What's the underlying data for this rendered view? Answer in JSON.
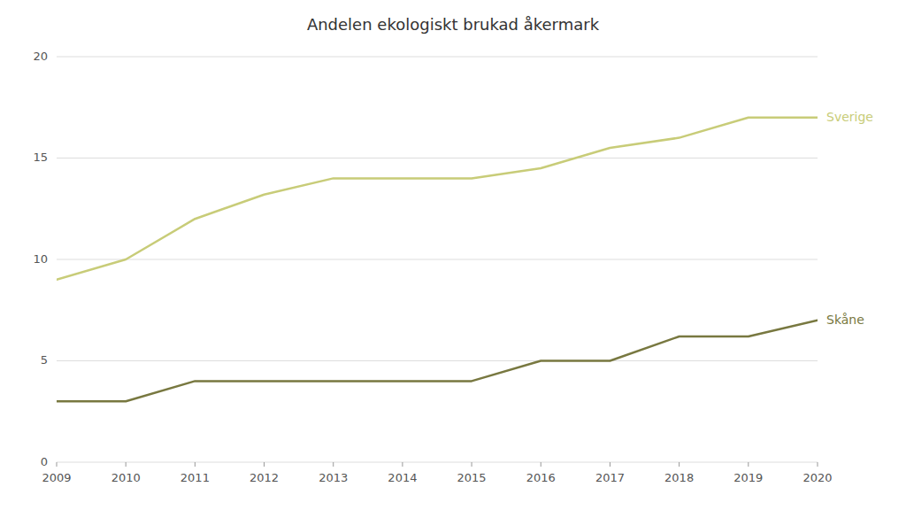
{
  "chart_data": {
    "type": "line",
    "title": "Andelen ekologiskt brukad åkermark",
    "x": [
      2009,
      2010,
      2011,
      2012,
      2013,
      2014,
      2015,
      2016,
      2017,
      2018,
      2019,
      2020
    ],
    "series": [
      {
        "name": "Sverige",
        "color": "#c8cc78",
        "values": [
          9.0,
          10.0,
          12.0,
          13.2,
          14.0,
          14.0,
          14.0,
          14.5,
          15.5,
          16.0,
          17.0,
          17.0
        ]
      },
      {
        "name": "Skåne",
        "color": "#787840",
        "values": [
          3.0,
          3.0,
          4.0,
          4.0,
          4.0,
          4.0,
          4.0,
          5.0,
          5.0,
          6.2,
          6.2,
          7.0
        ]
      }
    ],
    "xlim": [
      2009,
      2020
    ],
    "xticks": [
      2009,
      2010,
      2011,
      2012,
      2013,
      2014,
      2015,
      2016,
      2017,
      2018,
      2019,
      2020
    ],
    "ylim": [
      0,
      20
    ],
    "yticks": [
      0,
      5,
      10,
      15,
      20
    ],
    "grid": true
  }
}
